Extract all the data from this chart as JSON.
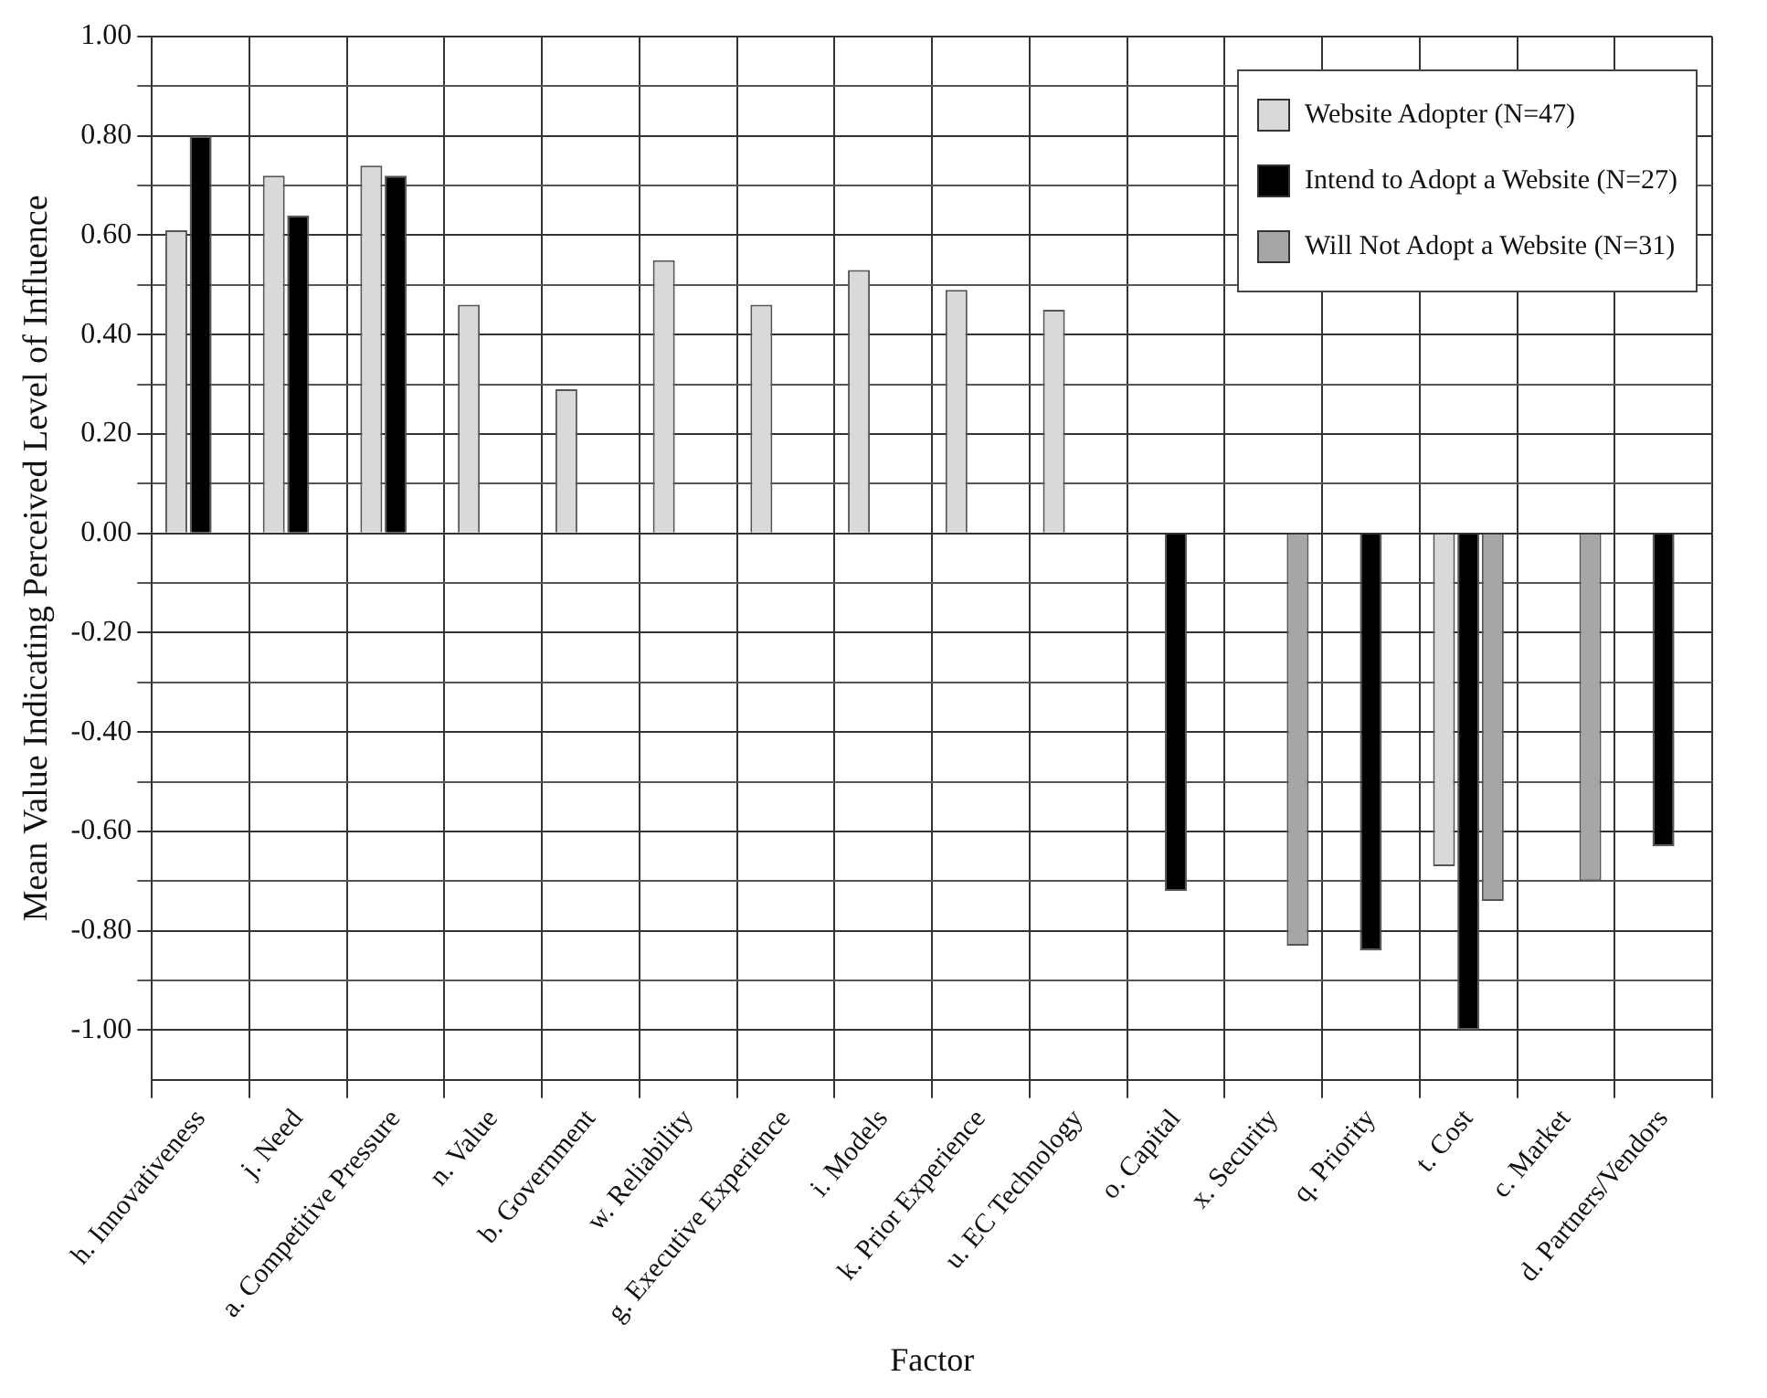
{
  "chart_data": {
    "type": "bar",
    "xlabel": "Factor",
    "ylabel": "Mean Value Indicating Perceived Level of Influence",
    "categories": [
      "h. Innovativeness",
      "j. Need",
      "a. Competitive Pressure",
      "n. Value",
      "b. Government",
      "w. Reliability",
      "g. Executive Experience",
      "i. Models",
      "k. Prior Experience",
      "u. EC Technology",
      "o. Capital",
      "x. Security",
      "q. Priority",
      "t. Cost",
      "c. Market",
      "d. Partners/Vendors"
    ],
    "series": [
      {
        "name": "Website Adopter  (N=47)",
        "color": "#d9d9d9",
        "values": [
          0.61,
          0.72,
          0.74,
          0.46,
          0.29,
          0.55,
          0.46,
          0.53,
          0.49,
          0.45,
          null,
          null,
          null,
          -0.67,
          null,
          null
        ]
      },
      {
        "name": "Intend to Adopt a Website (N=27)",
        "color": "#000000",
        "values": [
          0.8,
          0.64,
          0.72,
          null,
          null,
          null,
          null,
          null,
          null,
          null,
          -0.72,
          null,
          -0.84,
          -1.0,
          null,
          -0.63
        ]
      },
      {
        "name": "Will Not Adopt a Website (N=31)",
        "color": "#a6a6a6",
        "values": [
          null,
          null,
          null,
          null,
          null,
          null,
          null,
          null,
          null,
          null,
          null,
          -0.83,
          null,
          -0.74,
          -0.7,
          null
        ]
      }
    ],
    "ylim": [
      -1.1,
      1.0
    ],
    "yticks": [
      {
        "value": -1.0,
        "label": "-1.00"
      },
      {
        "value": -0.9,
        "label": null
      },
      {
        "value": -0.8,
        "label": "-0.80"
      },
      {
        "value": -0.7,
        "label": null
      },
      {
        "value": -0.6,
        "label": "-0.60"
      },
      {
        "value": -0.5,
        "label": null
      },
      {
        "value": -0.4,
        "label": "-0.40"
      },
      {
        "value": -0.3,
        "label": null
      },
      {
        "value": -0.2,
        "label": "-0.20"
      },
      {
        "value": -0.1,
        "label": null
      },
      {
        "value": 0,
        "label": "0.00"
      },
      {
        "value": 0.1,
        "label": null
      },
      {
        "value": 0.2,
        "label": "0.20"
      },
      {
        "value": 0.3,
        "label": null
      },
      {
        "value": 0.4,
        "label": "0.40"
      },
      {
        "value": 0.5,
        "label": null
      },
      {
        "value": 0.6,
        "label": "0.60"
      },
      {
        "value": 0.7,
        "label": null
      },
      {
        "value": 0.8,
        "label": "0.80"
      },
      {
        "value": 0.9,
        "label": null
      },
      {
        "value": 1.0,
        "label": "1.00"
      }
    ],
    "grid": true,
    "legend": "top right"
  }
}
